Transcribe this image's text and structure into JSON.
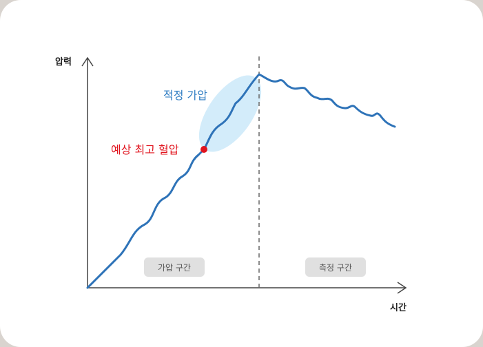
{
  "axes": {
    "y_label": "압력",
    "x_label": "시간"
  },
  "annotations": {
    "optimal_pressurization": "적정 가압",
    "estimated_systolic": "예상 최고 혈압"
  },
  "sections": {
    "inflation": "가압 구간",
    "measurement": "측정 구간"
  },
  "colors": {
    "curve": "#2e73b8",
    "highlight": "#d3ecfa",
    "marker": "#e1141e",
    "pill": "#e0e0e0"
  }
}
